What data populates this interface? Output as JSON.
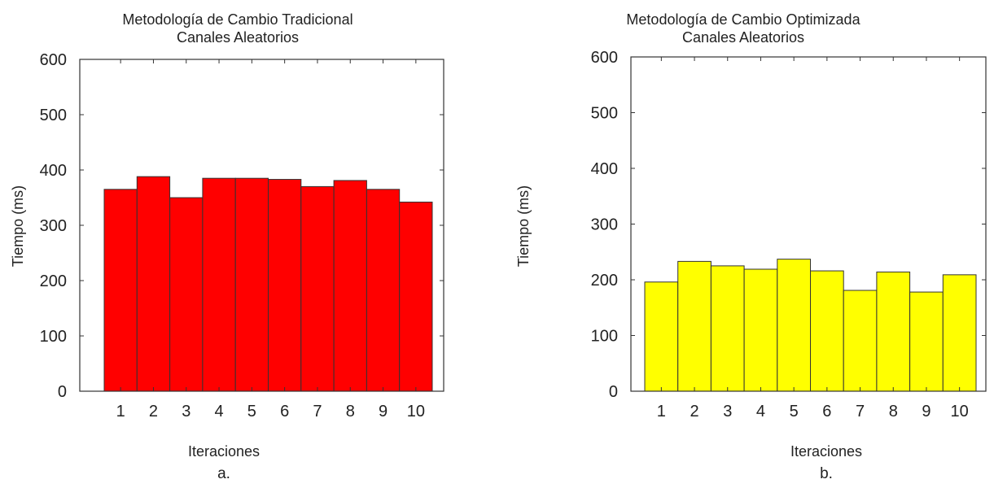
{
  "chart_data": [
    {
      "type": "bar",
      "title": "Metodología de Cambio Tradicional",
      "subtitle": "Canales Aleatorios",
      "xlabel": "Iteraciones",
      "ylabel": "Tiempo (ms)",
      "caption": "a.",
      "categories": [
        "1",
        "2",
        "3",
        "4",
        "5",
        "6",
        "7",
        "8",
        "9",
        "10"
      ],
      "values": [
        365,
        388,
        350,
        385,
        385,
        383,
        370,
        381,
        365,
        342
      ],
      "yticks": [
        "0",
        "100",
        "200",
        "300",
        "400",
        "500",
        "600"
      ],
      "ylim": [
        0,
        600
      ],
      "grid": false,
      "bar_color": "#ff0000"
    },
    {
      "type": "bar",
      "title": "Metodología de Cambio Optimizada",
      "subtitle": "Canales Aleatorios",
      "xlabel": "Iteraciones",
      "ylabel": "Tiempo (ms)",
      "caption": "b.",
      "categories": [
        "1",
        "2",
        "3",
        "4",
        "5",
        "6",
        "7",
        "8",
        "9",
        "10"
      ],
      "values": [
        196,
        233,
        225,
        219,
        237,
        216,
        181,
        214,
        178,
        209
      ],
      "yticks": [
        "0",
        "100",
        "200",
        "300",
        "400",
        "500",
        "600"
      ],
      "ylim": [
        0,
        600
      ],
      "grid": false,
      "bar_color": "#ffff00"
    }
  ]
}
